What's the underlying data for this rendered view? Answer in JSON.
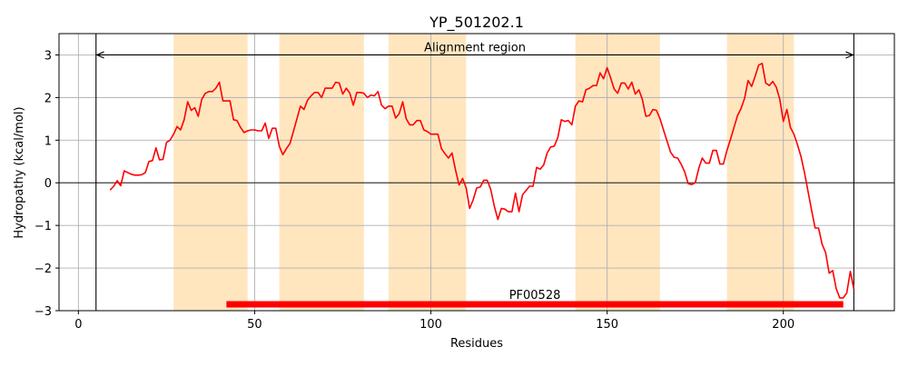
{
  "chart_data": {
    "type": "line",
    "title": "YP_501202.1",
    "xlabel": "Residues",
    "ylabel": "Hydropathy (kcal/mol)",
    "xlim": [
      -5.5,
      231.5
    ],
    "ylim": [
      -3,
      3.5
    ],
    "xticks": [
      0,
      50,
      100,
      150,
      200
    ],
    "yticks": [
      -3,
      -2,
      -1,
      0,
      1,
      2,
      3
    ],
    "grid": true,
    "colors": {
      "line": "#ff0000",
      "band": "#ffe6bf",
      "domain_bar": "#ff0000",
      "grid": "#b0b0b0",
      "axes": "#000000"
    },
    "series": [
      {
        "x": [
          9,
          10,
          11,
          12,
          13,
          14,
          15,
          16,
          17,
          18,
          19,
          20,
          21,
          22,
          23,
          24,
          25,
          26,
          27,
          28,
          29,
          30,
          31,
          32,
          33,
          34,
          35,
          36,
          37,
          38,
          39,
          40,
          41,
          42,
          43,
          44,
          45,
          46,
          47,
          48,
          49,
          50,
          51,
          52,
          53,
          54,
          55,
          56,
          57,
          58,
          59,
          60,
          61,
          62,
          63,
          64,
          65,
          66,
          67,
          68,
          69,
          70,
          71,
          72,
          73,
          74,
          75,
          76,
          77,
          78,
          79,
          80,
          81,
          82,
          83,
          84,
          85,
          86,
          87,
          88,
          89,
          90,
          91,
          92,
          93,
          94,
          95,
          96,
          97,
          98,
          99,
          100,
          101,
          102,
          103,
          104,
          105,
          106,
          107,
          108,
          109,
          110,
          111,
          112,
          113,
          114,
          115,
          116,
          117,
          118,
          119,
          120,
          121,
          122,
          123,
          124,
          125,
          126,
          127,
          128,
          129,
          130,
          131,
          132,
          133,
          134,
          135,
          136,
          137,
          138,
          139,
          140,
          141,
          142,
          143,
          144,
          145,
          146,
          147,
          148,
          149,
          150,
          151,
          152,
          153,
          154,
          155,
          156,
          157,
          158,
          159,
          160,
          161,
          162,
          163,
          164,
          165,
          166,
          167,
          168,
          169,
          170,
          171,
          172,
          173,
          174,
          175,
          176,
          177,
          178,
          179,
          180,
          181,
          182,
          183,
          184,
          185,
          186,
          187,
          188,
          189,
          190,
          191,
          192,
          193,
          194,
          195,
          196,
          197,
          198,
          199,
          200,
          201,
          202,
          203,
          204,
          205,
          206,
          207,
          208,
          209,
          210,
          211,
          212,
          213,
          214,
          215,
          216,
          217,
          218,
          219,
          220
        ],
        "y": [
          -0.17,
          -0.08,
          0.05,
          -0.07,
          0.28,
          0.24,
          0.2,
          0.18,
          0.18,
          0.19,
          0.24,
          0.5,
          0.52,
          0.82,
          0.54,
          0.55,
          0.95,
          1.0,
          1.14,
          1.32,
          1.24,
          1.48,
          1.9,
          1.7,
          1.76,
          1.56,
          1.96,
          2.1,
          2.14,
          2.14,
          2.22,
          2.36,
          1.92,
          1.92,
          1.92,
          1.48,
          1.46,
          1.3,
          1.18,
          1.22,
          1.24,
          1.24,
          1.22,
          1.22,
          1.4,
          1.04,
          1.28,
          1.28,
          0.86,
          0.66,
          0.8,
          0.92,
          1.2,
          1.5,
          1.8,
          1.72,
          1.94,
          2.04,
          2.12,
          2.12,
          2.0,
          2.22,
          2.22,
          2.22,
          2.36,
          2.34,
          2.08,
          2.22,
          2.1,
          1.82,
          2.12,
          2.12,
          2.1,
          2.0,
          2.06,
          2.04,
          2.14,
          1.82,
          1.74,
          1.8,
          1.8,
          1.52,
          1.62,
          1.9,
          1.5,
          1.36,
          1.36,
          1.46,
          1.46,
          1.24,
          1.2,
          1.14,
          1.14,
          1.14,
          0.8,
          0.68,
          0.58,
          0.7,
          0.3,
          -0.05,
          0.1,
          -0.12,
          -0.6,
          -0.4,
          -0.12,
          -0.1,
          0.06,
          0.06,
          -0.16,
          -0.55,
          -0.86,
          -0.6,
          -0.62,
          -0.68,
          -0.68,
          -0.24,
          -0.68,
          -0.28,
          -0.18,
          -0.08,
          -0.08,
          0.36,
          0.32,
          0.42,
          0.7,
          0.84,
          0.86,
          1.06,
          1.48,
          1.44,
          1.46,
          1.36,
          1.8,
          1.92,
          1.9,
          2.18,
          2.22,
          2.28,
          2.28,
          2.58,
          2.44,
          2.7,
          2.46,
          2.2,
          2.1,
          2.34,
          2.34,
          2.2,
          2.36,
          2.08,
          2.18,
          1.96,
          1.56,
          1.58,
          1.72,
          1.7,
          1.5,
          1.24,
          0.98,
          0.72,
          0.6,
          0.58,
          0.44,
          0.26,
          -0.02,
          -0.04,
          0.0,
          0.34,
          0.58,
          0.46,
          0.46,
          0.76,
          0.76,
          0.44,
          0.44,
          0.76,
          1.02,
          1.3,
          1.58,
          1.74,
          1.98,
          2.4,
          2.26,
          2.5,
          2.76,
          2.8,
          2.34,
          2.28,
          2.38,
          2.24,
          1.96,
          1.44,
          1.72,
          1.3,
          1.14,
          0.9,
          0.62,
          0.24,
          -0.2,
          -0.64,
          -1.06,
          -1.06,
          -1.44,
          -1.64,
          -2.12,
          -2.06,
          -2.48,
          -2.7,
          -2.7,
          -2.58,
          -2.08,
          -2.5
        ]
      }
    ],
    "bands": [
      [
        27,
        48
      ],
      [
        57,
        81
      ],
      [
        88,
        110
      ],
      [
        141,
        165
      ],
      [
        184,
        203
      ]
    ],
    "vlines": [
      5,
      220
    ],
    "annotations": {
      "alignment_label": "Alignment region",
      "alignment_start": 5,
      "alignment_end": 220,
      "alignment_y": 3,
      "domain_label": "PF00528",
      "domain_start": 42,
      "domain_end": 217,
      "domain_y": -2.85
    }
  }
}
